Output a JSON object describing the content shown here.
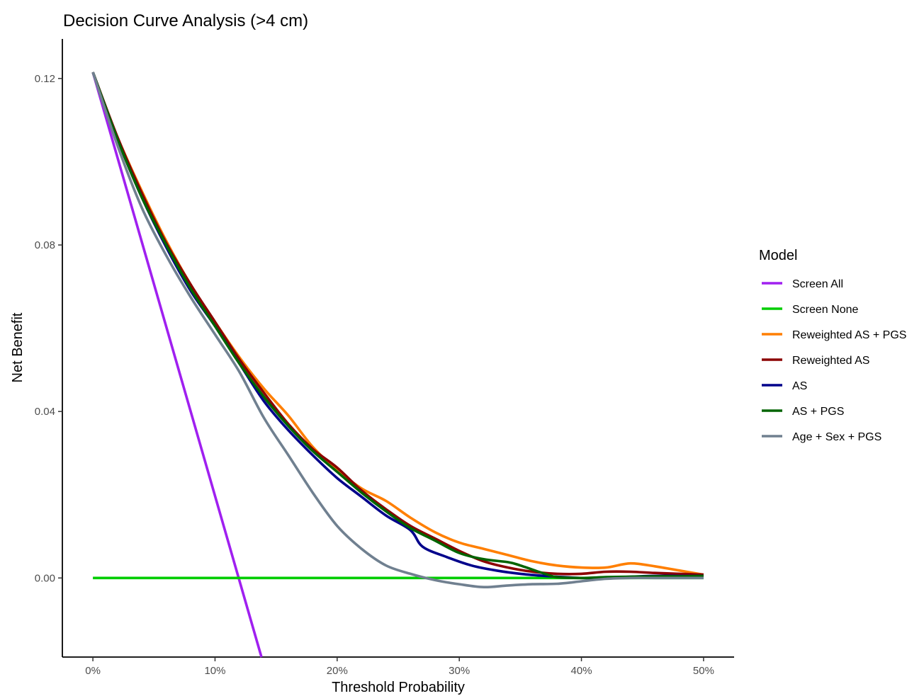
{
  "chart_data": {
    "type": "line",
    "title": "Decision Curve Analysis (>4 cm)",
    "xlabel": "Threshold Probability",
    "ylabel": "Net Benefit",
    "xlim": [
      -0.025,
      0.525
    ],
    "ylim": [
      -0.019,
      0.1295
    ],
    "x_ticks": [
      0,
      0.1,
      0.2,
      0.3,
      0.4,
      0.5
    ],
    "x_tick_labels": [
      "0%",
      "10%",
      "20%",
      "30%",
      "40%",
      "50%"
    ],
    "y_ticks": [
      0,
      0.04,
      0.08,
      0.12
    ],
    "y_tick_labels": [
      "0.00",
      "0.04",
      "0.08",
      "0.12"
    ],
    "grid": false,
    "legend": {
      "title": "Model",
      "position": "right"
    },
    "series": [
      {
        "name": "Screen All",
        "color": "#a020f0",
        "points": [
          [
            0,
            0.1215
          ],
          [
            0.138,
            -0.019
          ]
        ]
      },
      {
        "name": "Screen None",
        "color": "#00cd00",
        "points": [
          [
            0,
            0
          ],
          [
            0.5,
            0
          ]
        ]
      },
      {
        "name": "Reweighted AS + PGS",
        "color": "#ff7f00",
        "points": [
          [
            0,
            0.1215
          ],
          [
            0.02,
            0.106
          ],
          [
            0.04,
            0.093
          ],
          [
            0.06,
            0.081
          ],
          [
            0.08,
            0.0705
          ],
          [
            0.1,
            0.0615
          ],
          [
            0.12,
            0.053
          ],
          [
            0.14,
            0.0455
          ],
          [
            0.16,
            0.039
          ],
          [
            0.18,
            0.0315
          ],
          [
            0.2,
            0.026
          ],
          [
            0.22,
            0.0215
          ],
          [
            0.24,
            0.0185
          ],
          [
            0.26,
            0.0145
          ],
          [
            0.28,
            0.011
          ],
          [
            0.3,
            0.0085
          ],
          [
            0.32,
            0.007
          ],
          [
            0.34,
            0.0055
          ],
          [
            0.36,
            0.004
          ],
          [
            0.38,
            0.003
          ],
          [
            0.4,
            0.0025
          ],
          [
            0.42,
            0.0025
          ],
          [
            0.44,
            0.0035
          ],
          [
            0.46,
            0.0028
          ],
          [
            0.48,
            0.0018
          ],
          [
            0.5,
            0.0008
          ]
        ]
      },
      {
        "name": "Reweighted AS",
        "color": "#8b0000",
        "points": [
          [
            0,
            0.1215
          ],
          [
            0.02,
            0.106
          ],
          [
            0.04,
            0.0925
          ],
          [
            0.06,
            0.0805
          ],
          [
            0.08,
            0.0705
          ],
          [
            0.1,
            0.0615
          ],
          [
            0.12,
            0.0525
          ],
          [
            0.14,
            0.0445
          ],
          [
            0.16,
            0.037
          ],
          [
            0.18,
            0.031
          ],
          [
            0.2,
            0.0265
          ],
          [
            0.22,
            0.021
          ],
          [
            0.24,
            0.0165
          ],
          [
            0.26,
            0.0125
          ],
          [
            0.28,
            0.0095
          ],
          [
            0.3,
            0.0065
          ],
          [
            0.32,
            0.004
          ],
          [
            0.34,
            0.0025
          ],
          [
            0.36,
            0.0015
          ],
          [
            0.38,
            0.001
          ],
          [
            0.4,
            0.001
          ],
          [
            0.42,
            0.0015
          ],
          [
            0.44,
            0.0015
          ],
          [
            0.46,
            0.0012
          ],
          [
            0.48,
            0.001
          ],
          [
            0.5,
            0.0008
          ]
        ]
      },
      {
        "name": "AS",
        "color": "#00008b",
        "points": [
          [
            0,
            0.1215
          ],
          [
            0.02,
            0.1055
          ],
          [
            0.04,
            0.0915
          ],
          [
            0.06,
            0.0795
          ],
          [
            0.08,
            0.069
          ],
          [
            0.1,
            0.0605
          ],
          [
            0.12,
            0.0515
          ],
          [
            0.14,
            0.0425
          ],
          [
            0.16,
            0.0355
          ],
          [
            0.18,
            0.0295
          ],
          [
            0.2,
            0.024
          ],
          [
            0.22,
            0.0195
          ],
          [
            0.24,
            0.015
          ],
          [
            0.26,
            0.0115
          ],
          [
            0.27,
            0.0075
          ],
          [
            0.29,
            0.005
          ],
          [
            0.31,
            0.003
          ],
          [
            0.33,
            0.0018
          ],
          [
            0.35,
            0.001
          ],
          [
            0.37,
            0.0005
          ],
          [
            0.38,
            0.0003
          ],
          [
            0.4,
            0
          ],
          [
            0.42,
            0
          ],
          [
            0.44,
            0.0003
          ],
          [
            0.46,
            0.0005
          ],
          [
            0.48,
            0.0005
          ],
          [
            0.5,
            0.0005
          ]
        ]
      },
      {
        "name": "AS + PGS",
        "color": "#006400",
        "points": [
          [
            0,
            0.1215
          ],
          [
            0.02,
            0.1055
          ],
          [
            0.04,
            0.0915
          ],
          [
            0.06,
            0.08
          ],
          [
            0.08,
            0.0695
          ],
          [
            0.1,
            0.0605
          ],
          [
            0.12,
            0.0515
          ],
          [
            0.14,
            0.0435
          ],
          [
            0.16,
            0.0365
          ],
          [
            0.18,
            0.0305
          ],
          [
            0.2,
            0.0255
          ],
          [
            0.22,
            0.0205
          ],
          [
            0.24,
            0.016
          ],
          [
            0.26,
            0.012
          ],
          [
            0.28,
            0.009
          ],
          [
            0.3,
            0.006
          ],
          [
            0.32,
            0.0045
          ],
          [
            0.34,
            0.0038
          ],
          [
            0.35,
            0.003
          ],
          [
            0.37,
            0.001
          ],
          [
            0.38,
            0.0002
          ],
          [
            0.4,
            0
          ],
          [
            0.42,
            0.0002
          ],
          [
            0.44,
            0.0003
          ],
          [
            0.46,
            0.0004
          ],
          [
            0.48,
            0.0004
          ],
          [
            0.5,
            0.0005
          ]
        ]
      },
      {
        "name": "Age + Sex + PGS",
        "color": "#708090",
        "points": [
          [
            0,
            0.1215
          ],
          [
            0.02,
            0.104
          ],
          [
            0.04,
            0.089
          ],
          [
            0.06,
            0.0775
          ],
          [
            0.08,
            0.0675
          ],
          [
            0.1,
            0.0585
          ],
          [
            0.12,
            0.0495
          ],
          [
            0.14,
            0.0385
          ],
          [
            0.16,
            0.0295
          ],
          [
            0.18,
            0.0205
          ],
          [
            0.2,
            0.0125
          ],
          [
            0.22,
            0.007
          ],
          [
            0.24,
            0.003
          ],
          [
            0.26,
            0.001
          ],
          [
            0.28,
            -0.0005
          ],
          [
            0.3,
            -0.0015
          ],
          [
            0.32,
            -0.0022
          ],
          [
            0.34,
            -0.0018
          ],
          [
            0.36,
            -0.0015
          ],
          [
            0.38,
            -0.0014
          ],
          [
            0.4,
            -0.0008
          ],
          [
            0.42,
            -0.0002
          ],
          [
            0.44,
            0
          ],
          [
            0.46,
            0
          ],
          [
            0.48,
            0
          ],
          [
            0.5,
            0
          ]
        ]
      }
    ]
  }
}
